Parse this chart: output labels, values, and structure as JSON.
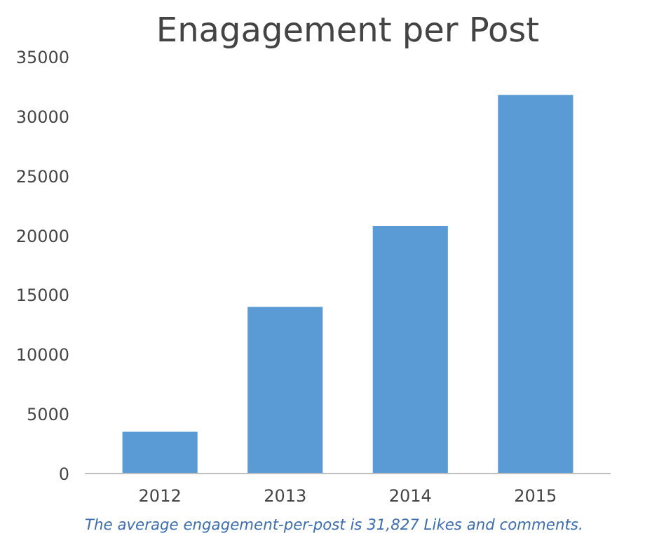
{
  "chart_data": {
    "type": "bar",
    "title": "Enagagement per Post",
    "categories": [
      "2012",
      "2013",
      "2014",
      "2015"
    ],
    "values": [
      3500,
      14000,
      20800,
      31800
    ],
    "color": "#5b9bd5",
    "ylim": [
      0,
      35000
    ],
    "yticks": [
      0,
      5000,
      10000,
      15000,
      20000,
      25000,
      30000,
      35000
    ],
    "grid": false,
    "annotations": [
      "The average engagement-per-post is 31,827 Likes and comments."
    ]
  }
}
